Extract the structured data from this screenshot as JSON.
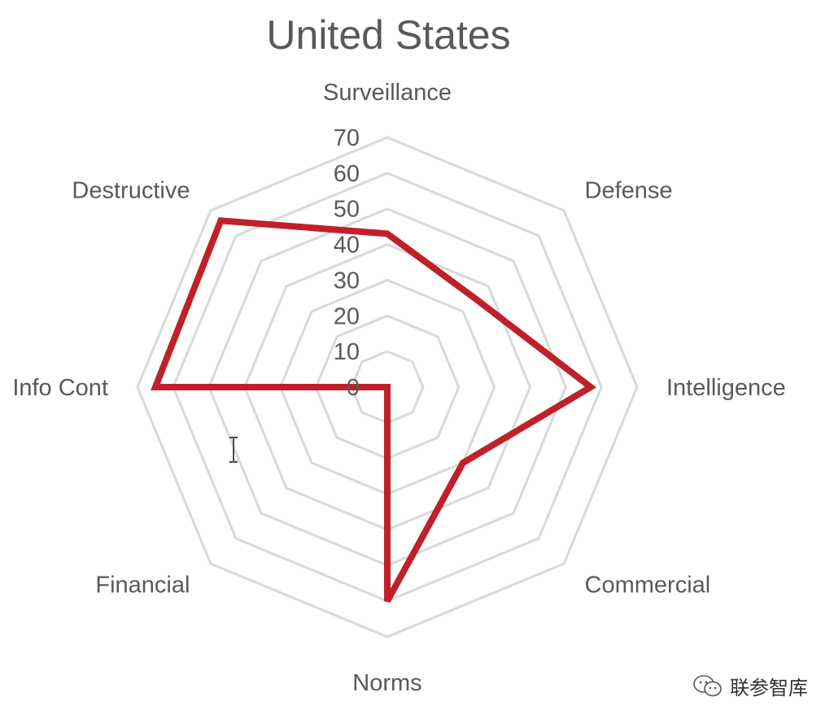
{
  "chart_data": {
    "type": "radar",
    "title": "United States",
    "categories": [
      "Surveillance",
      "Defense",
      "Intelligence",
      "Commercial",
      "Norms",
      "Financial",
      "Destructive",
      "Info Cont"
    ],
    "category_order_clockwise": [
      "Surveillance",
      "Defense",
      "Intelligence",
      "Commercial",
      "Norms",
      "Financial",
      "Info Cont",
      "Destructive"
    ],
    "values": {
      "Surveillance": 43,
      "Defense": 35,
      "Intelligence": 57,
      "Commercial": 30,
      "Norms": 60,
      "Financial": 0,
      "Info Cont": 65,
      "Destructive": 66
    },
    "ticks": [
      "0",
      "10",
      "20",
      "30",
      "40",
      "50",
      "60",
      "70"
    ],
    "rlim": [
      0,
      70
    ],
    "grid": true,
    "series_color": "#C0202A",
    "grid_color": "#D9D9D9"
  },
  "watermark": {
    "text": "联参智库",
    "icon": "wechat-icon"
  }
}
